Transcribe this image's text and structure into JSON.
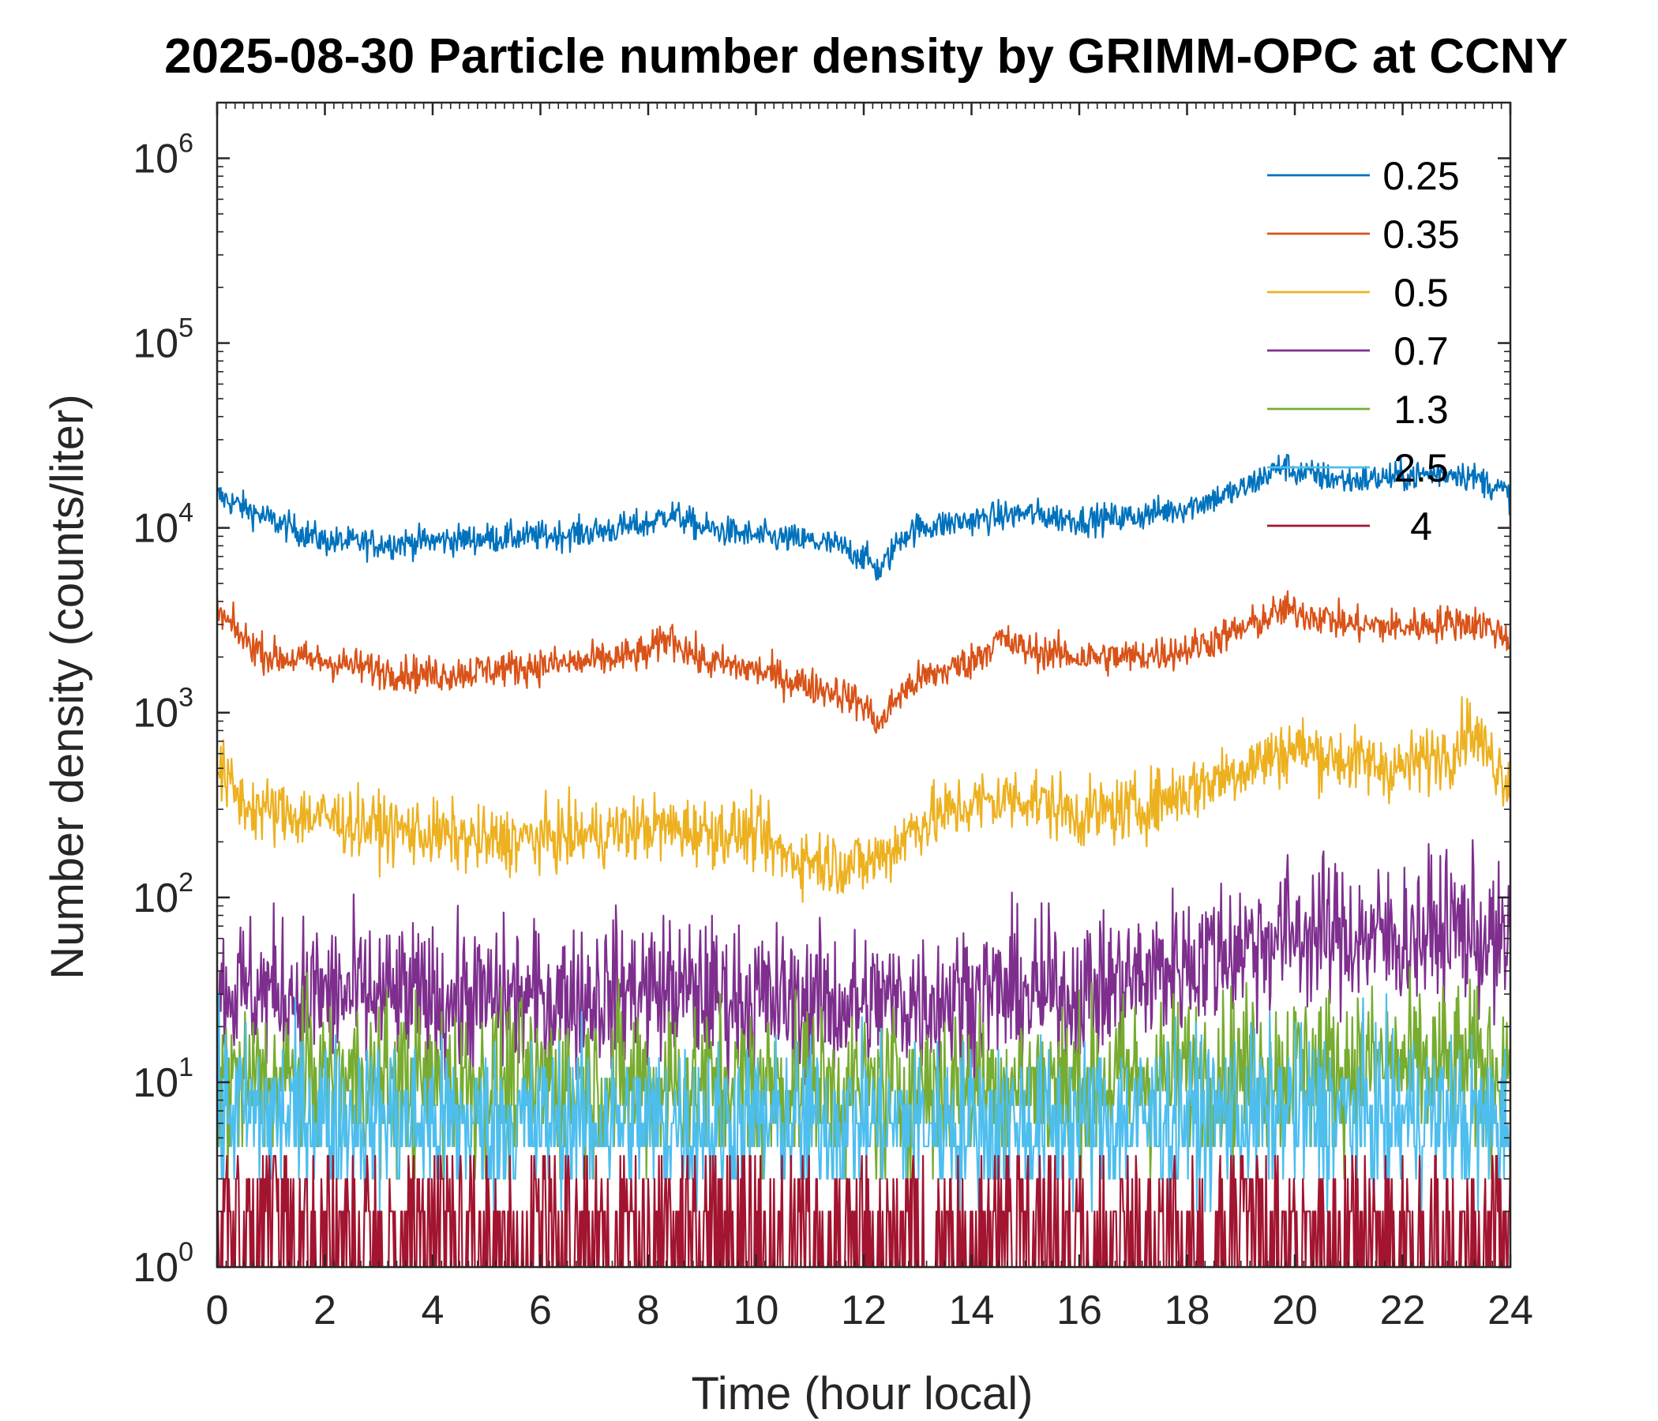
{
  "chart_data": {
    "type": "line",
    "title": "2025-08-30 Particle number density by GRIMM-OPC at CCNY",
    "xlabel": "Time (hour local)",
    "ylabel": "Number density (counts/liter)",
    "xlim": [
      0,
      24
    ],
    "xticks": [
      0,
      2,
      4,
      6,
      8,
      10,
      12,
      14,
      16,
      18,
      20,
      22,
      24
    ],
    "yscale": "log",
    "ylim": [
      1,
      2000000
    ],
    "yticks": [
      {
        "value": 1,
        "base": "10",
        "exp": "0"
      },
      {
        "value": 10,
        "base": "10",
        "exp": "1"
      },
      {
        "value": 100,
        "base": "10",
        "exp": "2"
      },
      {
        "value": 1000,
        "base": "10",
        "exp": "3"
      },
      {
        "value": 10000,
        "base": "10",
        "exp": "4"
      },
      {
        "value": 100000,
        "base": "10",
        "exp": "5"
      },
      {
        "value": 1000000,
        "base": "10",
        "exp": "6"
      }
    ],
    "legend_position": "top-right",
    "series": [
      {
        "name": "0.25",
        "color": "#0072BD",
        "x": [
          0,
          1,
          2,
          3,
          4,
          5,
          6,
          7,
          8,
          8.4,
          9,
          10,
          11,
          11.5,
          12,
          12.3,
          12.7,
          13,
          14,
          15,
          16,
          17,
          18,
          19,
          19.8,
          20,
          21,
          22,
          23,
          23.5,
          24
        ],
        "y": [
          15000,
          11000,
          8500,
          8200,
          8500,
          8800,
          9000,
          9500,
          10500,
          12000,
          10000,
          9000,
          8500,
          8000,
          7000,
          5800,
          9000,
          10000,
          11000,
          12000,
          11000,
          11500,
          13000,
          16000,
          22000,
          20000,
          18000,
          19000,
          20000,
          18000,
          15000
        ],
        "noise": 0.1
      },
      {
        "name": "0.35",
        "color": "#D95319",
        "x": [
          0,
          0.5,
          1,
          2,
          3,
          4,
          5,
          6,
          7,
          8,
          8.4,
          9,
          10,
          11,
          11.5,
          12,
          12.3,
          12.6,
          13,
          14,
          14.5,
          15,
          16,
          17,
          18,
          19,
          19.8,
          20.5,
          21,
          22,
          23,
          23.5,
          24
        ],
        "y": [
          3500,
          2500,
          2000,
          1900,
          1700,
          1600,
          1700,
          1800,
          1900,
          2100,
          2600,
          1900,
          1700,
          1400,
          1300,
          1100,
          850,
          1200,
          1500,
          1900,
          2500,
          2200,
          2000,
          2000,
          2200,
          2800,
          3600,
          3300,
          3000,
          2900,
          3100,
          3000,
          2500
        ],
        "noise": 0.12
      },
      {
        "name": "0.5",
        "color": "#EDB120",
        "x": [
          0,
          0.5,
          1,
          2,
          3,
          4,
          5,
          6,
          7,
          8,
          9,
          10,
          10.5,
          11,
          12,
          12.5,
          13,
          14,
          15,
          16,
          17,
          18,
          19,
          20,
          21,
          22,
          23,
          23.2,
          24
        ],
        "y": [
          500,
          320,
          290,
          270,
          240,
          220,
          200,
          210,
          220,
          240,
          230,
          220,
          170,
          160,
          150,
          180,
          250,
          320,
          350,
          280,
          300,
          380,
          500,
          650,
          550,
          500,
          650,
          850,
          420
        ],
        "noise": 0.22
      },
      {
        "name": "0.7",
        "color": "#7E2F8E",
        "x": [
          0,
          2,
          4,
          6,
          8,
          10,
          12,
          14,
          16,
          17,
          18,
          19,
          20,
          22,
          23,
          24
        ],
        "y": [
          32,
          30,
          28,
          28,
          32,
          28,
          26,
          30,
          30,
          35,
          45,
          55,
          65,
          60,
          70,
          50
        ],
        "noise": 0.5
      },
      {
        "name": "1.3",
        "color": "#77AC30",
        "x": [
          0,
          4,
          8,
          12,
          16,
          18,
          20,
          22,
          24
        ],
        "y": [
          10,
          10,
          10,
          9,
          10,
          11,
          12,
          12,
          12
        ],
        "noise": 0.55
      },
      {
        "name": "2.5",
        "color": "#4DBEEE",
        "x": [
          0,
          4,
          8,
          12,
          16,
          20,
          24
        ],
        "y": [
          7,
          6,
          6,
          6,
          6,
          7,
          6
        ],
        "noise": 0.55
      },
      {
        "name": "4",
        "color": "#A2142F",
        "x": [
          0,
          12,
          24
        ],
        "y": [
          1.2,
          1.2,
          1.2
        ],
        "noise": 0.7
      }
    ]
  }
}
